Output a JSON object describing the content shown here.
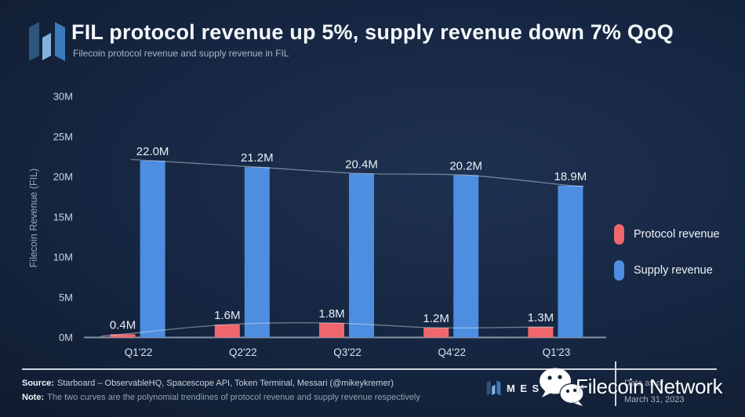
{
  "header": {
    "title": "FIL protocol revenue up 5%, supply revenue down 7% QoQ",
    "subtitle": "Filecoin protocol revenue and supply revenue in FIL",
    "logo_name": "messari-logo"
  },
  "chart_data": {
    "type": "bar",
    "categories": [
      "Q1'22",
      "Q2'22",
      "Q3'22",
      "Q4'22",
      "Q1'23"
    ],
    "series": [
      {
        "name": "Protocol revenue",
        "color": "#ef676d",
        "values": [
          0.4,
          1.6,
          1.8,
          1.2,
          1.3
        ],
        "labels": [
          "0.4M",
          "1.6M",
          "1.8M",
          "1.2M",
          "1.3M"
        ]
      },
      {
        "name": "Supply revenue",
        "color": "#4e8ee0",
        "values": [
          22.0,
          21.2,
          20.4,
          20.2,
          18.9
        ],
        "labels": [
          "22.0M",
          "21.2M",
          "20.4M",
          "20.2M",
          "18.9M"
        ]
      }
    ],
    "xlabel": "",
    "ylabel": "Filecoin Revenue (FIL)",
    "yticks": [
      "0M",
      "5M",
      "10M",
      "15M",
      "20M",
      "25M",
      "30M"
    ],
    "ytick_values": [
      0,
      5,
      10,
      15,
      20,
      25,
      30
    ],
    "ylim": [
      0,
      30
    ],
    "unit": "M FIL",
    "grid": false,
    "legend_position": "right",
    "trendlines": "polynomial trendlines of protocol revenue and supply revenue drawn as thin light curves over the bars"
  },
  "legend": {
    "items": [
      {
        "label": "Protocol revenue",
        "color": "#ef676d"
      },
      {
        "label": "Supply revenue",
        "color": "#4e8ee0"
      }
    ]
  },
  "footer": {
    "source_label": "Source:",
    "source_text": "Starboard – ObservableHQ, Spacescope API, Token Terminal, Messari (@mikeykremer)",
    "note_label": "Note:",
    "note_text": "The two curves are the polynomial trendlines of protocol revenue and supply revenue respectively",
    "brand": "MESSARI",
    "data_as_of_label": "Data as of",
    "data_as_of_date": "March 31, 2023"
  },
  "watermark": {
    "icon": "wechat-icon",
    "text": "Filecoin Network"
  },
  "colors": {
    "background_center": "#1e3150",
    "background_edge": "#0b1422",
    "axis": "#9aa6b6",
    "tick_text": "#c9d2dd",
    "trendline": "#e8edf2"
  }
}
